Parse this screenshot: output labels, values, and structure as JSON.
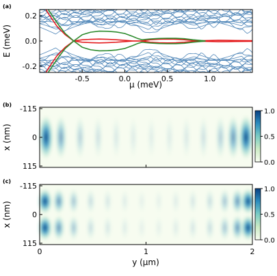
{
  "chart_data": [
    {
      "panel": "(a)",
      "type": "line",
      "xlabel": "μ (meV)",
      "ylabel": "E (meV)",
      "xlim": [
        -1.0,
        1.5
      ],
      "ylim": [
        -0.25,
        0.25
      ],
      "xticks": [
        -0.5,
        0.0,
        0.5,
        1.0
      ],
      "xtick_labels": [
        "-0.5",
        "0.0",
        "0.5",
        "1.0"
      ],
      "yticks": [
        0.2,
        0.0,
        -0.2
      ],
      "ytick_labels": [
        "0.2",
        "0.0",
        "-0.2"
      ],
      "colors": {
        "bulk": "#4f86b8",
        "green": "#2e8b2e",
        "red": "#e41a1c"
      },
      "series": [
        {
          "color_key": "red",
          "x": [
            -1.0,
            -0.9,
            -0.8,
            -0.7,
            -0.6,
            -0.5,
            -0.4,
            -0.3,
            -0.2,
            -0.1,
            0.0,
            0.1,
            0.15,
            0.2,
            0.3,
            0.4,
            0.5,
            0.6,
            0.7,
            0.8,
            0.9,
            1.0,
            1.1,
            1.2,
            1.3,
            1.4,
            1.5
          ],
          "y": [
            -0.34,
            -0.22,
            -0.12,
            -0.05,
            0.0,
            -0.01,
            -0.013,
            -0.015,
            -0.013,
            -0.01,
            -0.005,
            0.0,
            0.0,
            0.0,
            -0.01,
            -0.014,
            -0.015,
            -0.014,
            -0.01,
            -0.004,
            0.002,
            0.004,
            0.006,
            0.005,
            0.004,
            0.003,
            0.002
          ]
        },
        {
          "color_key": "red",
          "x": [
            -1.0,
            -0.9,
            -0.8,
            -0.7,
            -0.6,
            -0.5,
            -0.4,
            -0.3,
            -0.2,
            -0.1,
            0.0,
            0.1,
            0.15,
            0.2,
            0.3,
            0.4,
            0.5,
            0.6,
            0.7,
            0.8,
            0.9,
            1.0,
            1.1,
            1.2,
            1.3,
            1.4,
            1.5
          ],
          "y": [
            0.34,
            0.22,
            0.12,
            0.05,
            0.0,
            0.01,
            0.013,
            0.015,
            0.013,
            0.01,
            0.005,
            0.0,
            0.0,
            0.0,
            0.01,
            0.014,
            0.015,
            0.014,
            0.01,
            0.004,
            -0.002,
            -0.004,
            -0.006,
            -0.005,
            -0.004,
            -0.003,
            -0.002
          ]
        },
        {
          "color_key": "green",
          "x": [
            -0.92,
            -0.85,
            -0.78,
            -0.7,
            -0.6,
            -0.5,
            -0.4,
            -0.3,
            -0.2,
            -0.1,
            0.0,
            0.1,
            0.15,
            0.2,
            0.3,
            0.4,
            0.5,
            0.6,
            0.7,
            0.8,
            0.9,
            0.95
          ],
          "y": [
            0.27,
            0.2,
            0.13,
            0.06,
            0.0,
            -0.05,
            -0.07,
            -0.078,
            -0.077,
            -0.072,
            -0.06,
            -0.035,
            -0.02,
            -0.01,
            -0.016,
            -0.02,
            -0.022,
            -0.021,
            -0.018,
            -0.01,
            -0.004,
            0.0
          ]
        },
        {
          "color_key": "green",
          "x": [
            -0.92,
            -0.85,
            -0.78,
            -0.7,
            -0.6,
            -0.5,
            -0.4,
            -0.3,
            -0.2,
            -0.1,
            0.0,
            0.1,
            0.15,
            0.2,
            0.3,
            0.4,
            0.5,
            0.6,
            0.7,
            0.8,
            0.9,
            0.95
          ],
          "y": [
            -0.27,
            -0.2,
            -0.13,
            -0.06,
            0.0,
            0.05,
            0.07,
            0.078,
            0.077,
            0.072,
            0.06,
            0.035,
            0.02,
            0.01,
            0.016,
            0.02,
            0.022,
            0.021,
            0.018,
            0.01,
            0.004,
            0.0
          ]
        }
      ]
    },
    {
      "panel": "(b)",
      "type": "heatmap",
      "xlim": [
        0,
        2
      ],
      "ylabel": "x (nm)",
      "yticks": [
        -115,
        0,
        115
      ],
      "ytick_labels": [
        "-115",
        "0",
        "115"
      ],
      "colorbar": {
        "range": [
          0.0,
          1.0
        ],
        "ticks": [
          1.0,
          0.5,
          0.0
        ],
        "tick_labels": [
          "1.0",
          "0.5",
          "0.0"
        ],
        "colors": [
          "#f7fcf0",
          "#ccebc5",
          "#7bccc4",
          "#2b8cbe",
          "#084081"
        ]
      },
      "profile_y": [
        0.06,
        0.2,
        0.38,
        0.55,
        0.72,
        0.88,
        1.05,
        1.22,
        1.38,
        1.54,
        1.7,
        1.82,
        1.94
      ],
      "profile_value": [
        1.0,
        0.55,
        0.28,
        0.18,
        0.13,
        0.11,
        0.1,
        0.11,
        0.13,
        0.18,
        0.3,
        0.6,
        1.0
      ],
      "lobes": 1
    },
    {
      "panel": "(c)",
      "type": "heatmap",
      "xlim": [
        0,
        2
      ],
      "xlabel": "y (μm)",
      "xticks": [
        0,
        1,
        2
      ],
      "xtick_labels": [
        "0",
        "1",
        "2"
      ],
      "ylabel": "x (nm)",
      "yticks": [
        -115,
        0,
        115
      ],
      "ytick_labels": [
        "-115",
        "0",
        "115"
      ],
      "colorbar": {
        "range": [
          0.0,
          1.0
        ],
        "ticks": [
          1.0,
          0.5,
          0.0
        ],
        "tick_labels": [
          "1.0",
          "0.5",
          "0.0"
        ],
        "colors": [
          "#f7fcf0",
          "#ccebc5",
          "#7bccc4",
          "#2b8cbe",
          "#084081"
        ]
      },
      "profile_y": [
        0.05,
        0.18,
        0.32,
        0.48,
        0.64,
        0.8,
        0.96,
        1.12,
        1.28,
        1.44,
        1.6,
        1.74,
        1.86,
        1.96
      ],
      "profile_value": [
        1.0,
        0.6,
        0.35,
        0.2,
        0.14,
        0.1,
        0.08,
        0.08,
        0.1,
        0.14,
        0.2,
        0.35,
        0.6,
        1.0
      ],
      "lobes": 2
    }
  ]
}
